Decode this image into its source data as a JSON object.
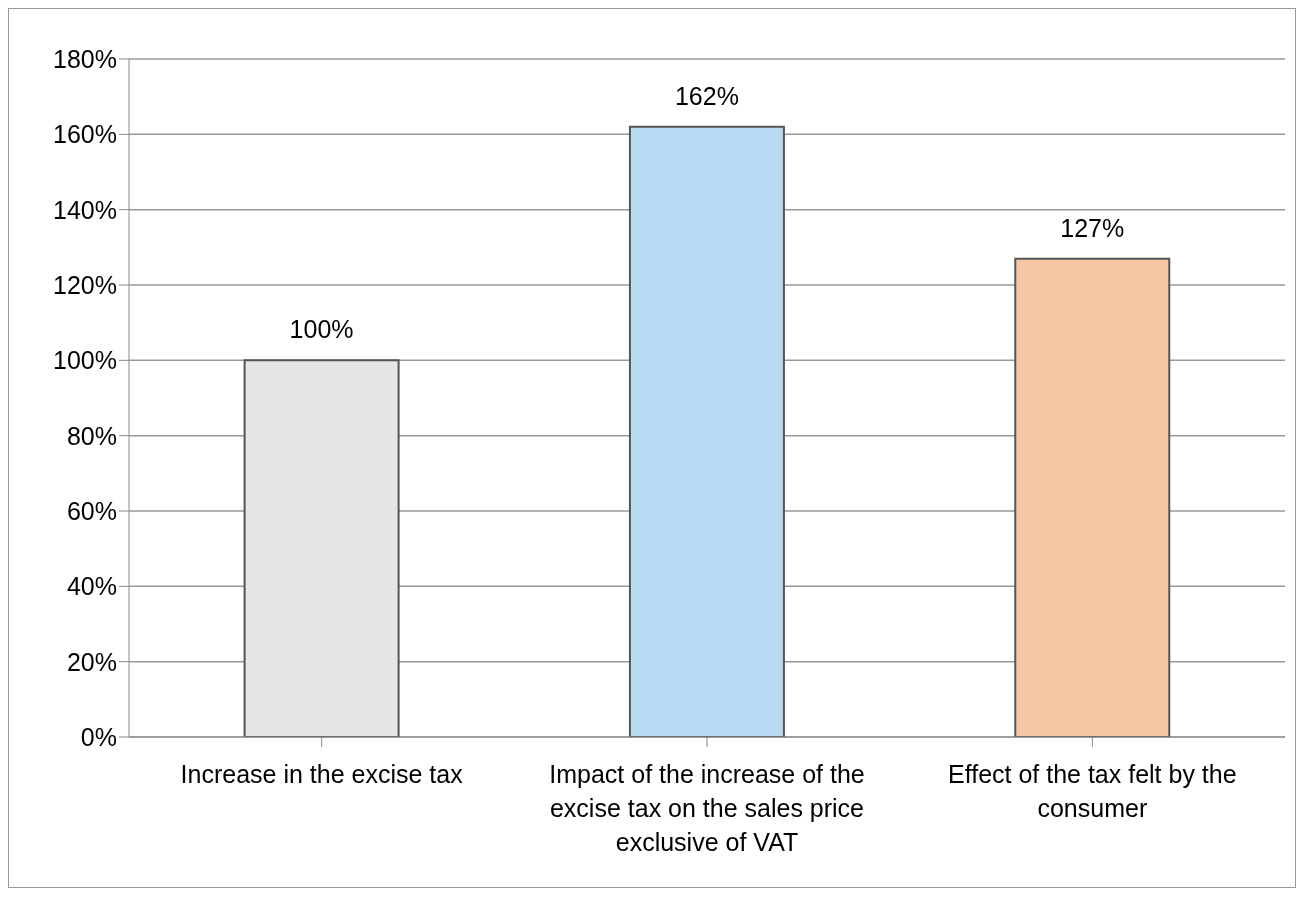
{
  "chart_data": {
    "type": "bar",
    "categories": [
      "Increase in the excise tax",
      "Impact of the increase of the excise tax on the sales price exclusive of VAT",
      "Effect of the tax felt by the consumer"
    ],
    "values": [
      100,
      162,
      127
    ],
    "colors": [
      "#e6e6e6",
      "#b9daf3",
      "#f7c6a4"
    ],
    "value_labels": [
      "100%",
      "162%",
      "127%"
    ],
    "ylim": [
      0,
      180
    ],
    "yticks": [
      {
        "value": 0,
        "label": "0%"
      },
      {
        "value": 20,
        "label": "20%"
      },
      {
        "value": 40,
        "label": "40%"
      },
      {
        "value": 60,
        "label": "60%"
      },
      {
        "value": 80,
        "label": "80%"
      },
      {
        "value": 100,
        "label": "100%"
      },
      {
        "value": 120,
        "label": "120%"
      },
      {
        "value": 140,
        "label": "140%"
      },
      {
        "value": 160,
        "label": "160%"
      },
      {
        "value": 180,
        "label": "180%"
      }
    ],
    "grid": "y",
    "legend": false
  }
}
